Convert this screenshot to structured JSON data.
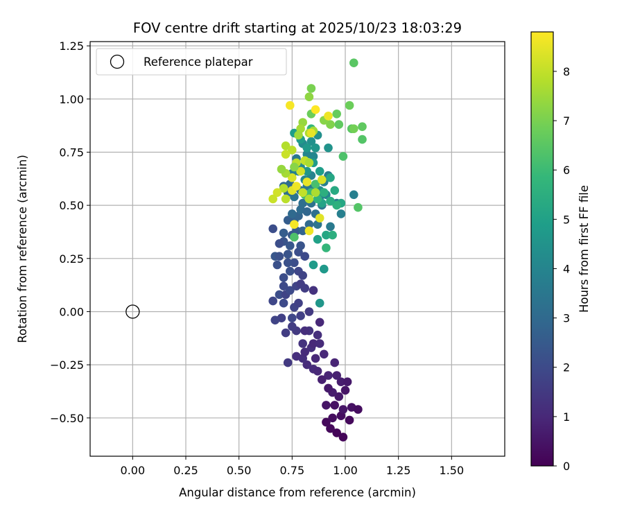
{
  "chart_data": {
    "type": "scatter",
    "title": "FOV centre drift starting at 2025/10/23 18:03:29",
    "xlabel": "Angular distance from reference (arcmin)",
    "ylabel": "Rotation from reference (arcmin)",
    "xlim": [
      -0.2,
      1.75
    ],
    "ylim": [
      -0.68,
      1.27
    ],
    "grid": true,
    "xticks": [
      0.0,
      0.25,
      0.5,
      0.75,
      1.0,
      1.25,
      1.5
    ],
    "xtick_labels": [
      "0.00",
      "0.25",
      "0.50",
      "0.75",
      "1.00",
      "1.25",
      "1.50"
    ],
    "yticks": [
      -0.5,
      -0.25,
      0.0,
      0.25,
      0.5,
      0.75,
      1.0,
      1.25
    ],
    "ytick_labels": [
      "−0.50",
      "−0.25",
      "0.00",
      "0.25",
      "0.50",
      "0.75",
      "1.00",
      "1.25"
    ],
    "legend": {
      "label": "Reference platepar",
      "location": "upper-left"
    },
    "reference_point": {
      "x": 0.0,
      "y": 0.0
    },
    "colorbar": {
      "label": "Hours from first FF file",
      "colormap": "viridis",
      "range": [
        0,
        8.8
      ],
      "ticks": [
        0,
        1,
        2,
        3,
        4,
        5,
        6,
        7,
        8
      ],
      "tick_labels": [
        "0",
        "1",
        "2",
        "3",
        "4",
        "5",
        "6",
        "7",
        "8"
      ]
    },
    "points": [
      [
        0.99,
        -0.59,
        0.1
      ],
      [
        0.96,
        -0.57,
        0.1
      ],
      [
        0.93,
        -0.55,
        0.2
      ],
      [
        0.91,
        -0.52,
        0.2
      ],
      [
        0.94,
        -0.5,
        0.3
      ],
      [
        0.98,
        -0.49,
        0.3
      ],
      [
        1.02,
        -0.51,
        0.2
      ],
      [
        1.03,
        -0.45,
        0.4
      ],
      [
        1.06,
        -0.46,
        0.3
      ],
      [
        0.99,
        -0.46,
        0.5
      ],
      [
        0.95,
        -0.44,
        0.4
      ],
      [
        0.91,
        -0.44,
        0.5
      ],
      [
        0.97,
        -0.4,
        0.6
      ],
      [
        1.0,
        -0.37,
        0.5
      ],
      [
        0.94,
        -0.38,
        0.7
      ],
      [
        0.92,
        -0.36,
        0.6
      ],
      [
        0.98,
        -0.33,
        0.7
      ],
      [
        1.01,
        -0.33,
        0.6
      ],
      [
        0.96,
        -0.3,
        0.8
      ],
      [
        0.92,
        -0.3,
        0.9
      ],
      [
        0.89,
        -0.32,
        0.8
      ],
      [
        0.95,
        -0.24,
        0.9
      ],
      [
        0.9,
        -0.2,
        1.0
      ],
      [
        0.86,
        -0.22,
        1.0
      ],
      [
        0.85,
        -0.27,
        1.1
      ],
      [
        0.87,
        -0.28,
        1.0
      ],
      [
        0.82,
        -0.25,
        1.1
      ],
      [
        0.8,
        -0.22,
        1.2
      ],
      [
        0.77,
        -0.21,
        1.2
      ],
      [
        0.73,
        -0.24,
        1.5
      ],
      [
        0.81,
        -0.19,
        1.1
      ],
      [
        0.84,
        -0.17,
        1.2
      ],
      [
        0.8,
        -0.15,
        1.3
      ],
      [
        0.85,
        -0.15,
        1.0
      ],
      [
        0.88,
        -0.15,
        1.1
      ],
      [
        0.87,
        -0.11,
        1.2
      ],
      [
        0.88,
        -0.05,
        1.0
      ],
      [
        0.83,
        -0.09,
        1.3
      ],
      [
        0.81,
        -0.09,
        1.2
      ],
      [
        0.77,
        -0.09,
        1.5
      ],
      [
        0.75,
        -0.07,
        1.6
      ],
      [
        0.72,
        -0.1,
        1.6
      ],
      [
        0.7,
        -0.03,
        1.7
      ],
      [
        0.67,
        -0.04,
        1.8
      ],
      [
        0.75,
        -0.03,
        1.9
      ],
      [
        0.79,
        -0.02,
        1.7
      ],
      [
        0.83,
        0.0,
        1.5
      ],
      [
        0.76,
        0.02,
        1.8
      ],
      [
        0.71,
        0.04,
        2.0
      ],
      [
        0.66,
        0.05,
        1.9
      ],
      [
        0.69,
        0.08,
        2.1
      ],
      [
        0.72,
        0.08,
        1.8
      ],
      [
        0.78,
        0.04,
        1.7
      ],
      [
        0.74,
        0.1,
        2.0
      ],
      [
        0.71,
        0.12,
        2.0
      ],
      [
        0.77,
        0.12,
        1.8
      ],
      [
        0.79,
        0.13,
        1.6
      ],
      [
        0.85,
        0.1,
        1.3
      ],
      [
        0.81,
        0.11,
        1.6
      ],
      [
        0.71,
        0.16,
        2.1
      ],
      [
        0.74,
        0.19,
        2.2
      ],
      [
        0.78,
        0.19,
        1.9
      ],
      [
        0.8,
        0.17,
        1.8
      ],
      [
        0.76,
        0.23,
        2.1
      ],
      [
        0.73,
        0.23,
        2.2
      ],
      [
        0.68,
        0.22,
        2.2
      ],
      [
        0.67,
        0.26,
        2.4
      ],
      [
        0.69,
        0.26,
        2.2
      ],
      [
        0.73,
        0.27,
        2.3
      ],
      [
        0.78,
        0.28,
        2.1
      ],
      [
        0.81,
        0.26,
        2.0
      ],
      [
        0.79,
        0.31,
        2.3
      ],
      [
        0.74,
        0.31,
        2.4
      ],
      [
        0.71,
        0.33,
        2.3
      ],
      [
        0.69,
        0.32,
        2.1
      ],
      [
        0.66,
        0.39,
        2.1
      ],
      [
        0.71,
        0.37,
        2.6
      ],
      [
        0.75,
        0.36,
        2.4
      ],
      [
        0.77,
        0.38,
        2.5
      ],
      [
        0.8,
        0.38,
        2.8
      ],
      [
        0.76,
        0.43,
        2.7
      ],
      [
        0.73,
        0.43,
        2.6
      ],
      [
        0.78,
        0.45,
        2.8
      ],
      [
        0.75,
        0.46,
        3.0
      ],
      [
        0.79,
        0.48,
        3.1
      ],
      [
        0.82,
        0.47,
        2.9
      ],
      [
        0.86,
        0.46,
        3.2
      ],
      [
        0.89,
        0.5,
        3.5
      ],
      [
        0.84,
        0.51,
        3.3
      ],
      [
        0.8,
        0.51,
        3.2
      ],
      [
        0.87,
        0.41,
        3.4
      ],
      [
        0.83,
        0.41,
        3.0
      ],
      [
        0.93,
        0.4,
        3.6
      ],
      [
        0.96,
        0.51,
        3.7
      ],
      [
        0.98,
        0.46,
        3.8
      ],
      [
        0.76,
        0.54,
        3.4
      ],
      [
        0.79,
        0.57,
        3.3
      ],
      [
        0.73,
        0.56,
        3.2
      ],
      [
        0.71,
        0.59,
        3.0
      ],
      [
        0.74,
        0.6,
        3.1
      ],
      [
        0.82,
        0.59,
        3.5
      ],
      [
        0.85,
        0.58,
        3.6
      ],
      [
        0.88,
        0.54,
        3.9
      ],
      [
        0.91,
        0.55,
        4.0
      ],
      [
        0.92,
        0.64,
        3.7
      ],
      [
        0.9,
        0.61,
        3.8
      ],
      [
        0.88,
        0.57,
        4.3
      ],
      [
        0.84,
        0.64,
        3.9
      ],
      [
        0.81,
        0.62,
        4.1
      ],
      [
        0.78,
        0.66,
        3.8
      ],
      [
        0.75,
        0.65,
        3.8
      ],
      [
        0.79,
        0.68,
        4.2
      ],
      [
        0.85,
        0.73,
        4.1
      ],
      [
        0.82,
        0.74,
        4.0
      ],
      [
        0.77,
        0.72,
        3.5
      ],
      [
        0.8,
        0.79,
        4.2
      ],
      [
        0.84,
        0.8,
        4.4
      ],
      [
        0.87,
        0.83,
        4.4
      ],
      [
        0.86,
        0.77,
        4.6
      ],
      [
        0.92,
        0.77,
        4.5
      ],
      [
        0.82,
        0.66,
        4.6
      ],
      [
        0.85,
        0.7,
        4.8
      ],
      [
        0.76,
        0.84,
        4.9
      ],
      [
        0.79,
        0.81,
        4.8
      ],
      [
        0.82,
        0.77,
        4.7
      ],
      [
        0.88,
        0.66,
        4.9
      ],
      [
        0.93,
        0.63,
        5.2
      ],
      [
        0.95,
        0.57,
        5.3
      ],
      [
        0.98,
        0.51,
        5.2
      ],
      [
        0.96,
        0.5,
        5.6
      ],
      [
        0.93,
        0.52,
        5.4
      ],
      [
        0.89,
        0.51,
        5.1
      ],
      [
        0.9,
        0.56,
        5.5
      ],
      [
        0.87,
        0.34,
        5.0
      ],
      [
        0.91,
        0.36,
        5.2
      ],
      [
        0.94,
        0.36,
        5.5
      ],
      [
        0.91,
        0.3,
        5.8
      ],
      [
        0.85,
        0.22,
        4.8
      ],
      [
        0.9,
        0.2,
        4.7
      ],
      [
        0.88,
        0.04,
        4.6
      ],
      [
        0.76,
        0.35,
        6.3
      ],
      [
        0.87,
        0.53,
        5.7
      ],
      [
        0.84,
        0.56,
        6.0
      ],
      [
        0.81,
        0.55,
        6.1
      ],
      [
        0.86,
        0.6,
        6.2
      ],
      [
        0.84,
        0.86,
        5.8
      ],
      [
        0.99,
        0.73,
        6.3
      ],
      [
        1.04,
        0.55,
        3.8
      ],
      [
        1.06,
        0.49,
        6.4
      ],
      [
        1.08,
        0.81,
        6.4
      ],
      [
        1.08,
        0.87,
        6.6
      ],
      [
        1.03,
        0.86,
        6.5
      ],
      [
        1.04,
        0.86,
        6.9
      ],
      [
        1.02,
        0.97,
        6.8
      ],
      [
        0.97,
        0.88,
        6.6
      ],
      [
        0.96,
        0.93,
        6.7
      ],
      [
        0.93,
        0.88,
        7.1
      ],
      [
        0.9,
        0.9,
        7.2
      ],
      [
        0.84,
        0.93,
        6.8
      ],
      [
        0.84,
        1.05,
        7.0
      ],
      [
        0.83,
        1.01,
        7.3
      ],
      [
        0.8,
        0.89,
        7.4
      ],
      [
        0.79,
        0.86,
        7.6
      ],
      [
        0.83,
        0.84,
        7.7
      ],
      [
        0.85,
        0.85,
        7.6
      ],
      [
        0.78,
        0.83,
        7.5
      ],
      [
        0.72,
        0.78,
        7.8
      ],
      [
        0.75,
        0.76,
        7.9
      ],
      [
        0.72,
        0.74,
        8.1
      ],
      [
        0.77,
        0.7,
        7.9
      ],
      [
        0.81,
        0.71,
        8.0
      ],
      [
        0.83,
        0.7,
        7.7
      ],
      [
        0.79,
        0.66,
        8.2
      ],
      [
        0.75,
        0.63,
        8.3
      ],
      [
        0.72,
        0.65,
        7.6
      ],
      [
        0.7,
        0.67,
        7.4
      ],
      [
        0.76,
        0.68,
        7.2
      ],
      [
        0.71,
        0.58,
        7.8
      ],
      [
        0.68,
        0.56,
        8.2
      ],
      [
        0.66,
        0.53,
        8.1
      ],
      [
        0.72,
        0.53,
        7.9
      ],
      [
        0.75,
        0.57,
        8.4
      ],
      [
        0.77,
        0.59,
        8.6
      ],
      [
        0.8,
        0.56,
        8.0
      ],
      [
        0.83,
        0.53,
        7.8
      ],
      [
        0.86,
        0.56,
        7.7
      ],
      [
        0.82,
        0.61,
        8.5
      ],
      [
        0.89,
        0.62,
        8.3
      ],
      [
        0.83,
        0.38,
        8.6
      ],
      [
        0.76,
        0.41,
        8.7
      ],
      [
        0.88,
        0.44,
        8.4
      ],
      [
        0.84,
        0.84,
        8.5
      ],
      [
        0.86,
        0.95,
        8.8
      ],
      [
        0.92,
        0.92,
        8.6
      ],
      [
        0.74,
        0.97,
        8.7
      ],
      [
        1.04,
        1.17,
        6.5
      ]
    ]
  }
}
